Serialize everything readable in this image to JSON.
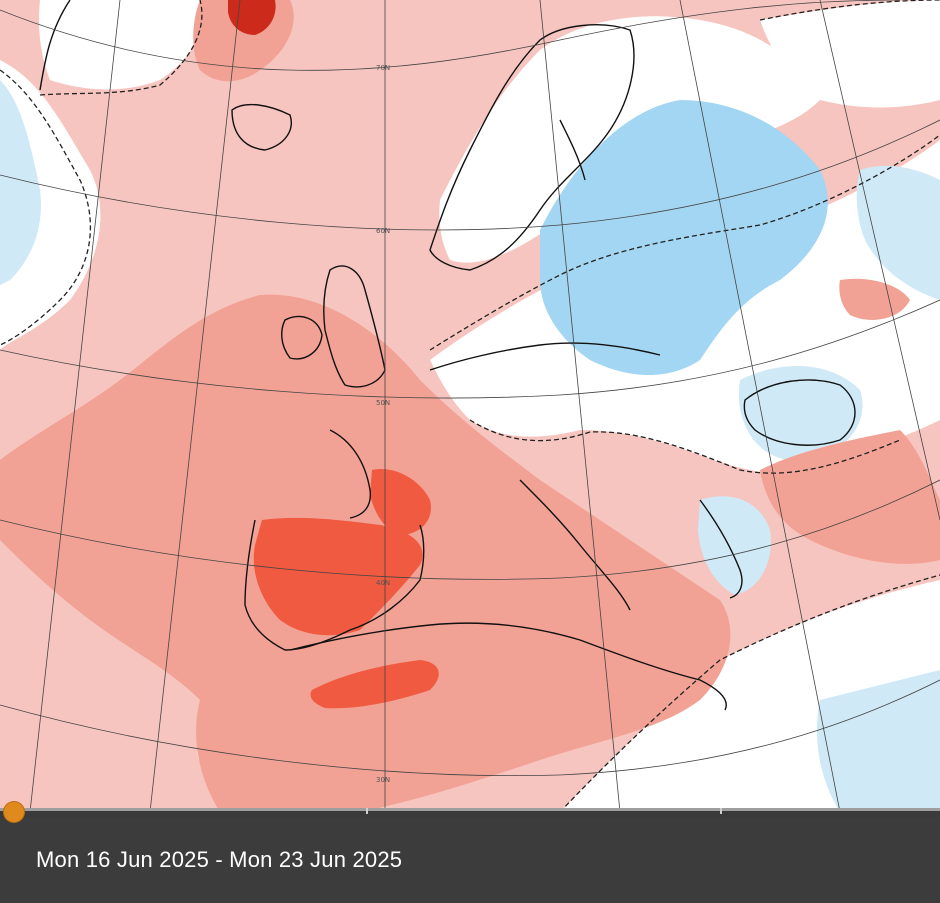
{
  "map": {
    "latitude_labels": [
      "70N",
      "60N",
      "50N",
      "40N",
      "30N"
    ],
    "colors": {
      "warm_light": "#f7c5bf",
      "warm_medium": "#f2a294",
      "warm_strong": "#f05a40",
      "warm_extreme": "#cc2a1a",
      "neutral": "#ffffff",
      "cool_light": "#cfe9f7",
      "cool_medium": "#a3d6f2",
      "coast": "#111111",
      "grid": "#444444"
    }
  },
  "timeline": {
    "position_fraction": 0.0
  },
  "caption": {
    "date_range": "Mon 16 Jun 2025 - Mon 23 Jun 2025"
  }
}
